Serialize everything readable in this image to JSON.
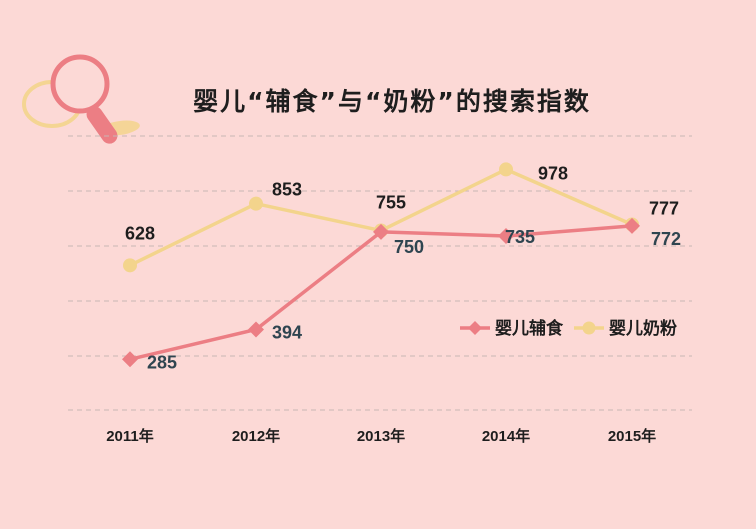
{
  "colors": {
    "background": "#fcd9d6",
    "gridline": "#c9b7b4",
    "series_infant_food": "#ec7e84",
    "series_infant_formula": "#f3d48c",
    "label_dark": "#1e1e1e",
    "label_slate": "#2f4550"
  },
  "decoration": {
    "icon": "magnifier-icon"
  },
  "chart_data": {
    "type": "line",
    "title": "婴儿“辅食”与“奶粉”的搜索指数",
    "xlabel": "",
    "ylabel": "",
    "categories": [
      "2011年",
      "2012年",
      "2013年",
      "2014年",
      "2015年"
    ],
    "ylim": [
      100,
      1100
    ],
    "grid": true,
    "legend_position": "right-middle",
    "series": [
      {
        "name": "婴儿辅食",
        "values": [
          285,
          394,
          750,
          735,
          772
        ],
        "labels": [
          "285",
          "394",
          "750",
          "735",
          "772"
        ],
        "color": "#ec7e84",
        "marker": "diamond"
      },
      {
        "name": "婴儿奶粉",
        "values": [
          628,
          853,
          755,
          978,
          777
        ],
        "labels": [
          "628",
          "853",
          "755",
          "978",
          "777"
        ],
        "color": "#f3d48c",
        "marker": "diamond"
      }
    ]
  }
}
